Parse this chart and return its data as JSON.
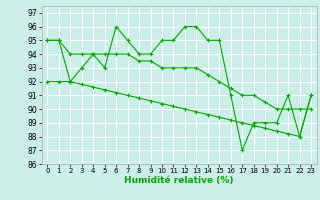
{
  "xlabel": "Humidité relative (%)",
  "background_color": "#cceee8",
  "grid_color": "#ffffff",
  "line_color": "#00aa00",
  "xlim": [
    -0.5,
    23.5
  ],
  "ylim": [
    86,
    97.5
  ],
  "yticks": [
    86,
    87,
    88,
    89,
    90,
    91,
    92,
    93,
    94,
    95,
    96,
    97
  ],
  "xticks": [
    0,
    1,
    2,
    3,
    4,
    5,
    6,
    7,
    8,
    9,
    10,
    11,
    12,
    13,
    14,
    15,
    16,
    17,
    18,
    19,
    20,
    21,
    22,
    23
  ],
  "line1_y": [
    95,
    95,
    92,
    93,
    94,
    93,
    96,
    95,
    94,
    94,
    95,
    95,
    96,
    96,
    95,
    95,
    91,
    87,
    89,
    89,
    89,
    91,
    88,
    91
  ],
  "line2_y": [
    95,
    95,
    94,
    94,
    94,
    94,
    94,
    94,
    93.5,
    93.5,
    93,
    93,
    93,
    93,
    92.5,
    92,
    91.5,
    91,
    91,
    90.5,
    90,
    90,
    90,
    90
  ],
  "line3_y": [
    92,
    92,
    92,
    91.8,
    91.6,
    91.4,
    91.2,
    91,
    90.8,
    90.6,
    90.4,
    90.2,
    90,
    89.8,
    89.6,
    89.4,
    89.2,
    89,
    88.8,
    88.6,
    88.4,
    88.2,
    88,
    91
  ]
}
